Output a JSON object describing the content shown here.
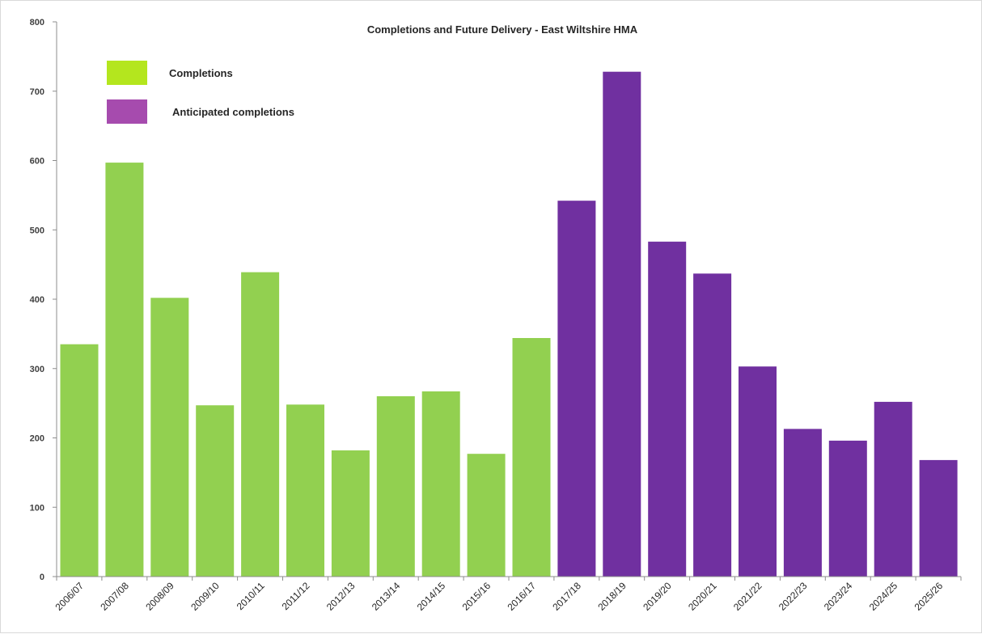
{
  "chart_data": {
    "type": "bar",
    "title": "Completions and Future Delivery - East Wiltshire HMA",
    "xlabel": "",
    "ylabel": "",
    "ylim": [
      0,
      800
    ],
    "yticks": [
      0,
      100,
      200,
      300,
      400,
      500,
      600,
      700,
      800
    ],
    "grid": false,
    "legend_position": "top-left",
    "categories": [
      "2006/07",
      "2007/08",
      "2008/09",
      "2009/10",
      "2010/11",
      "2011/12",
      "2012/13",
      "2013/14",
      "2014/15",
      "2015/16",
      "2016/17",
      "2017/18",
      "2018/19",
      "2019/20",
      "2020/21",
      "2021/22",
      "2022/23",
      "2023/24",
      "2024/25",
      "2025/26"
    ],
    "series": [
      {
        "name": "Completions",
        "color": "#92d050",
        "legend_swatch_color": "#b4e61e",
        "values": [
          335,
          597,
          402,
          247,
          439,
          248,
          182,
          260,
          267,
          177,
          344,
          null,
          null,
          null,
          null,
          null,
          null,
          null,
          null,
          null
        ]
      },
      {
        "name": "Anticipated completions",
        "color": "#7030a0",
        "legend_swatch_color": "#a64bae",
        "values": [
          null,
          null,
          null,
          null,
          null,
          null,
          null,
          null,
          null,
          null,
          null,
          542,
          728,
          483,
          437,
          303,
          213,
          196,
          252,
          168
        ]
      }
    ]
  }
}
